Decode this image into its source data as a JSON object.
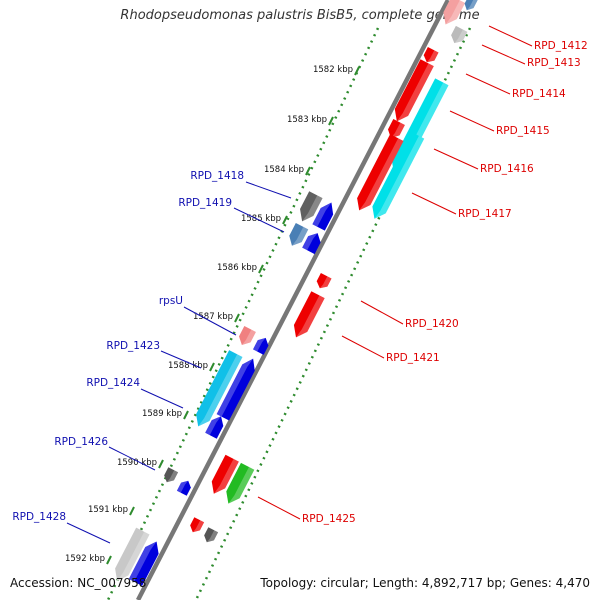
{
  "title": "Rhodopseudomonas palustris BisB5, complete genome",
  "accession": "Accession: NC_007958",
  "topology": "Topology: circular; Length: 4,892,717 bp; Genes: 4,470",
  "colors": {
    "backbone": "#777777",
    "tick_dots": "#2e8b2e",
    "label_left": "#1010b0",
    "label_right": "#dd0000",
    "kbp_text": "#111111"
  },
  "kbp_labels": [
    "1582 kbp",
    "1583 kbp",
    "1584 kbp",
    "1585 kbp",
    "1586 kbp",
    "1587 kbp",
    "1588 kbp",
    "1589 kbp",
    "1590 kbp",
    "1591 kbp",
    "1592 kbp"
  ],
  "genes_left": [
    {
      "label": "RPD_1418",
      "color": "#606060"
    },
    {
      "label": "RPD_1419",
      "color": "#4a7fb5"
    },
    {
      "label": "rpsU",
      "color": "#f08080"
    },
    {
      "label": "RPD_1423",
      "color": "#10c0e8"
    },
    {
      "label": "RPD_1424",
      "color": "#0000dd"
    },
    {
      "label": "RPD_1426",
      "color": "#555555"
    },
    {
      "label": "RPD_1428",
      "color": "#c8c8c8"
    }
  ],
  "genes_right": [
    {
      "label": "RPD_1412",
      "color": "#f4a0a0"
    },
    {
      "label": "RPD_1413",
      "color": "#bbbbbb"
    },
    {
      "label": "RPD_1414",
      "color": "#ee0000"
    },
    {
      "label": "RPD_1415",
      "color": "#ee0000"
    },
    {
      "label": "RPD_1416",
      "color": "#00e0e8"
    },
    {
      "label": "RPD_1417",
      "color": "#ee0000"
    },
    {
      "label": "RPD_1420",
      "color": "#ee0000"
    },
    {
      "label": "RPD_1421",
      "color": "#ee0000"
    },
    {
      "label": "RPD_1425",
      "color": "#22bb22"
    }
  ]
}
